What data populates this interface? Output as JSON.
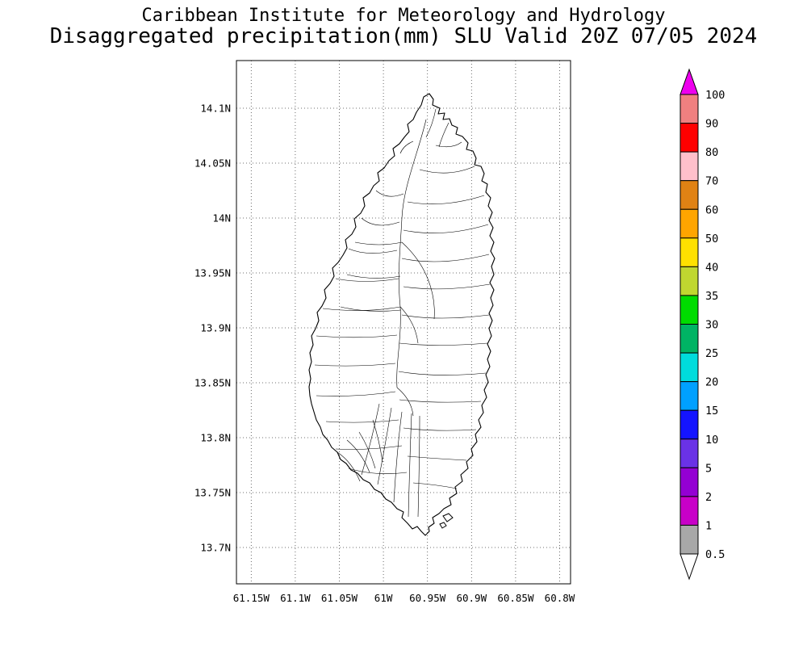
{
  "title": {
    "line1": "Caribbean Institute for Meteorology and Hydrology",
    "line2": "Disaggregated precipitation(mm) SLU Valid 20Z 07/05 2024"
  },
  "chart_data": {
    "type": "map",
    "product": "Disaggregated precipitation",
    "units": "mm",
    "region": "SLU (Saint Lucia)",
    "valid_time": "20Z 07/05 2024",
    "source": "Caribbean Institute for Meteorology and Hydrology",
    "grid_style": "dotted",
    "map_content": "Saint Lucia island coastline with interior watershed/river boundary polylines; no precipitation shading visible (all values below 0.5 mm)",
    "lat_ticks": [
      "14.1N",
      "14.05N",
      "14N",
      "13.95N",
      "13.9N",
      "13.85N",
      "13.8N",
      "13.75N",
      "13.7N"
    ],
    "lon_ticks": [
      "61.15W",
      "61.1W",
      "61.05W",
      "61W",
      "60.95W",
      "60.9W",
      "60.85W",
      "60.8W"
    ],
    "colorbar": {
      "orientation": "vertical",
      "position": "right",
      "tick_labels": [
        "100",
        "90",
        "80",
        "70",
        "60",
        "50",
        "40",
        "35",
        "30",
        "25",
        "20",
        "15",
        "10",
        "5",
        "2",
        "1",
        "0.5"
      ],
      "segment_colors_top_to_bottom": [
        "#F08080",
        "#FF0000",
        "#FFC0CB",
        "#E08214",
        "#FFA500",
        "#FFE100",
        "#C0D730",
        "#00DC00",
        "#00B464",
        "#00DCDC",
        "#00A0FF",
        "#1414FF",
        "#6A32E6",
        "#9400D3",
        "#C800C8",
        "#A8A8A8"
      ],
      "above_max_arrow_color": "#EE00EE",
      "below_min_arrow_color": "#FFFFFF"
    }
  }
}
